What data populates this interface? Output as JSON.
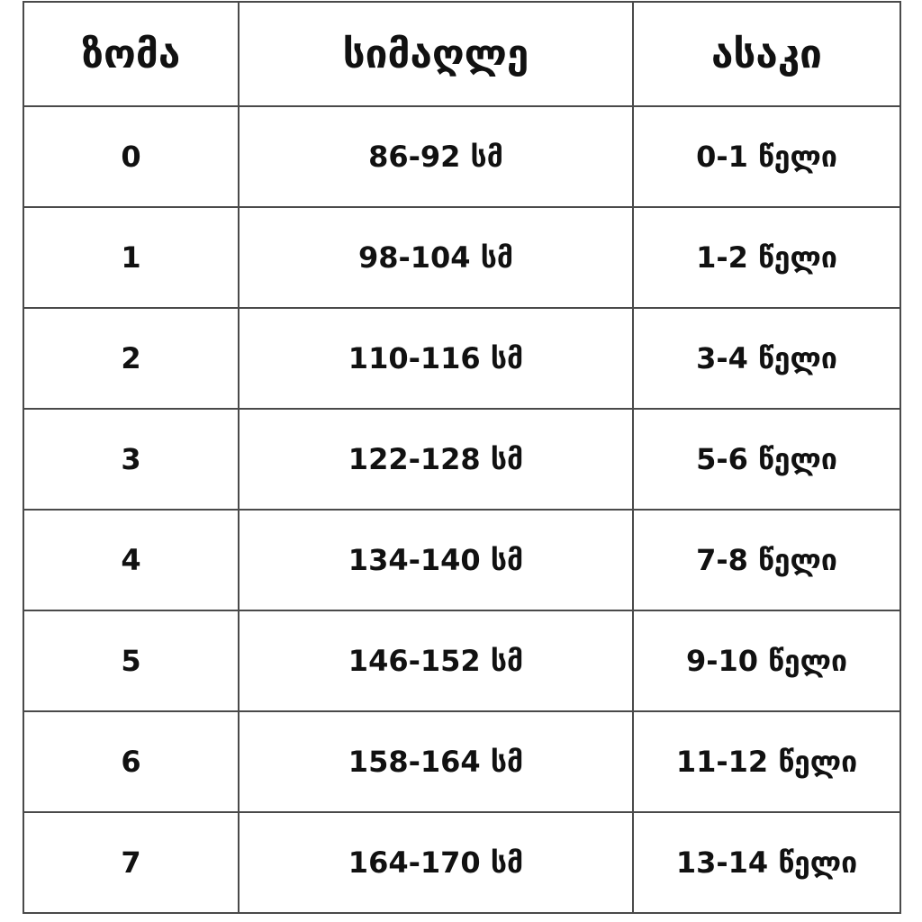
{
  "table": {
    "headers": [
      "ზომა",
      "სიმაღლე",
      "ასაკი"
    ],
    "rows": [
      [
        "0",
        "86-92 სმ",
        "0-1 წელი"
      ],
      [
        "1",
        "98-104 სმ",
        "1-2 წელი"
      ],
      [
        "2",
        "110-116 სმ",
        "3-4 წელი"
      ],
      [
        "3",
        "122-128 სმ",
        "5-6 წელი"
      ],
      [
        "4",
        "134-140 სმ",
        "7-8 წელი"
      ],
      [
        "5",
        "146-152 სმ",
        "9-10 წელი"
      ],
      [
        "6",
        "158-164 სმ",
        "11-12 წელი"
      ],
      [
        "7",
        "164-170 სმ",
        "13-14 წელი"
      ]
    ]
  }
}
